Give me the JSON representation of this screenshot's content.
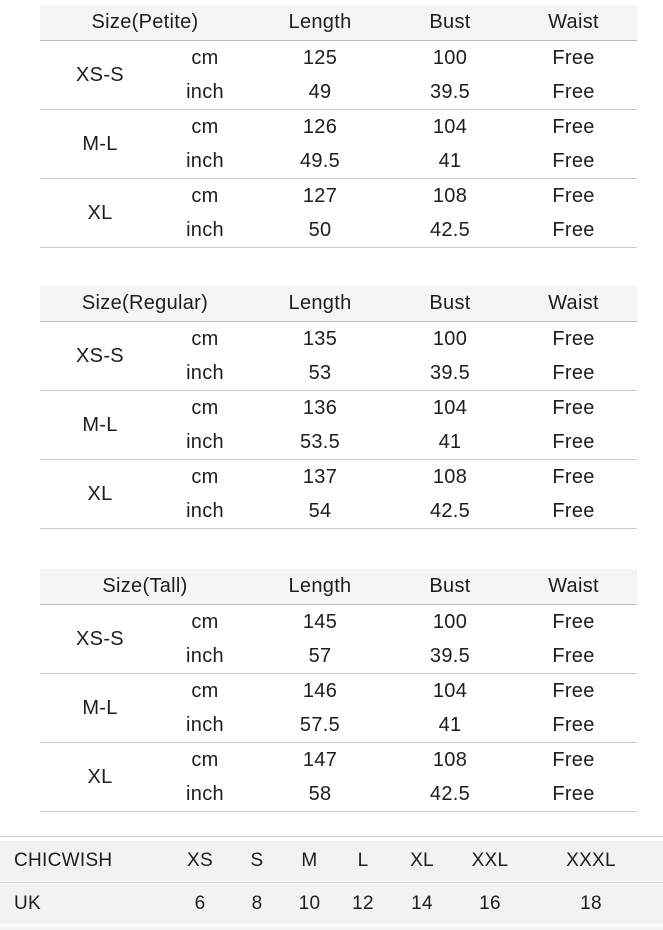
{
  "colors": {
    "text": "#1d1d1d",
    "table_header_bg": "#f5f5f6",
    "conversion_row_bg": "#f2f2f3",
    "header_rule": "#bcbcbc",
    "group_rule": "#c9c9c9"
  },
  "chart_data": {
    "type": "table",
    "tables": [
      {
        "header": [
          "Size(Petite)",
          "Length",
          "Bust",
          "Waist"
        ],
        "groups": [
          {
            "size": "XS-S",
            "rows": [
              [
                "cm",
                "125",
                "100",
                "Free"
              ],
              [
                "inch",
                "49",
                "39.5",
                "Free"
              ]
            ]
          },
          {
            "size": "M-L",
            "rows": [
              [
                "cm",
                "126",
                "104",
                "Free"
              ],
              [
                "inch",
                "49.5",
                "41",
                "Free"
              ]
            ]
          },
          {
            "size": "XL",
            "rows": [
              [
                "cm",
                "127",
                "108",
                "Free"
              ],
              [
                "inch",
                "50",
                "42.5",
                "Free"
              ]
            ]
          }
        ]
      },
      {
        "header": [
          "Size(Regular)",
          "Length",
          "Bust",
          "Waist"
        ],
        "groups": [
          {
            "size": "XS-S",
            "rows": [
              [
                "cm",
                "135",
                "100",
                "Free"
              ],
              [
                "inch",
                "53",
                "39.5",
                "Free"
              ]
            ]
          },
          {
            "size": "M-L",
            "rows": [
              [
                "cm",
                "136",
                "104",
                "Free"
              ],
              [
                "inch",
                "53.5",
                "41",
                "Free"
              ]
            ]
          },
          {
            "size": "XL",
            "rows": [
              [
                "cm",
                "137",
                "108",
                "Free"
              ],
              [
                "inch",
                "54",
                "42.5",
                "Free"
              ]
            ]
          }
        ]
      },
      {
        "header": [
          "Size(Tall)",
          "Length",
          "Bust",
          "Waist"
        ],
        "groups": [
          {
            "size": "XS-S",
            "rows": [
              [
                "cm",
                "145",
                "100",
                "Free"
              ],
              [
                "inch",
                "57",
                "39.5",
                "Free"
              ]
            ]
          },
          {
            "size": "M-L",
            "rows": [
              [
                "cm",
                "146",
                "104",
                "Free"
              ],
              [
                "inch",
                "57.5",
                "41",
                "Free"
              ]
            ]
          },
          {
            "size": "XL",
            "rows": [
              [
                "cm",
                "147",
                "108",
                "Free"
              ],
              [
                "inch",
                "58",
                "42.5",
                "Free"
              ]
            ]
          }
        ]
      }
    ],
    "conversion": {
      "brand_row": [
        "CHICWISH",
        "XS",
        "S",
        "M",
        "L",
        "XL",
        "XXL",
        "XXXL"
      ],
      "uk_row": [
        "UK",
        "6",
        "8",
        "10",
        "12",
        "14",
        "16",
        "18"
      ]
    }
  }
}
